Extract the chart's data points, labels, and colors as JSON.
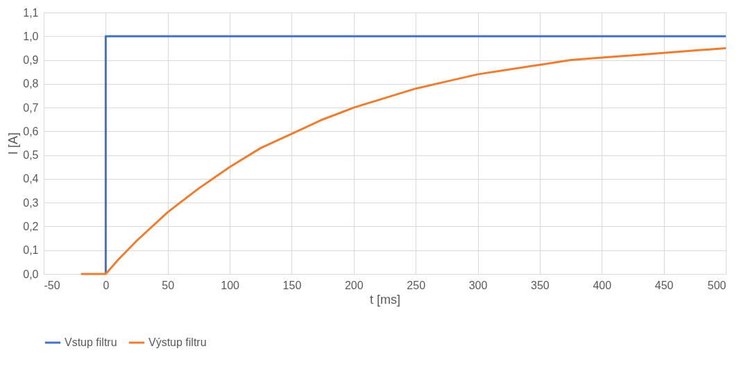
{
  "chart_data": {
    "type": "line",
    "xlabel": "t [ms]",
    "ylabel": "I [A]",
    "series": [
      {
        "name": "Vstup filtru",
        "color": "#4472c4",
        "x": [
          0,
          0,
          500
        ],
        "values": [
          0,
          1,
          1
        ]
      },
      {
        "name": "Výstup filtru",
        "color": "#ed7d31",
        "x": [
          -20,
          0,
          10,
          25,
          50,
          75,
          100,
          125,
          150,
          175,
          200,
          225,
          250,
          275,
          300,
          325,
          350,
          375,
          400,
          425,
          450,
          475,
          500
        ],
        "values": [
          0,
          0,
          0.06,
          0.14,
          0.26,
          0.36,
          0.45,
          0.53,
          0.59,
          0.65,
          0.7,
          0.74,
          0.78,
          0.81,
          0.84,
          0.86,
          0.88,
          0.9,
          0.91,
          0.92,
          0.93,
          0.94,
          0.95
        ]
      }
    ],
    "xlim": [
      -50,
      500
    ],
    "xticks": [
      -50,
      0,
      50,
      100,
      150,
      200,
      250,
      300,
      350,
      400,
      450,
      500
    ],
    "ylim": [
      0,
      1.1
    ],
    "yticks": [
      {
        "value": 0,
        "label": "0,0"
      },
      {
        "value": 0.1,
        "label": "0,1"
      },
      {
        "value": 0.2,
        "label": "0,2"
      },
      {
        "value": 0.3,
        "label": "0,3"
      },
      {
        "value": 0.4,
        "label": "0,4"
      },
      {
        "value": 0.5,
        "label": "0,5"
      },
      {
        "value": 0.6,
        "label": "0,6"
      },
      {
        "value": 0.7,
        "label": "0,7"
      },
      {
        "value": 0.8,
        "label": "0,8"
      },
      {
        "value": 0.9,
        "label": "0,9"
      },
      {
        "value": 1,
        "label": "1,0"
      },
      {
        "value": 1.1,
        "label": "1,1"
      }
    ],
    "grid": true,
    "legend": "bottom",
    "marker": "none",
    "line_style": "solid"
  }
}
